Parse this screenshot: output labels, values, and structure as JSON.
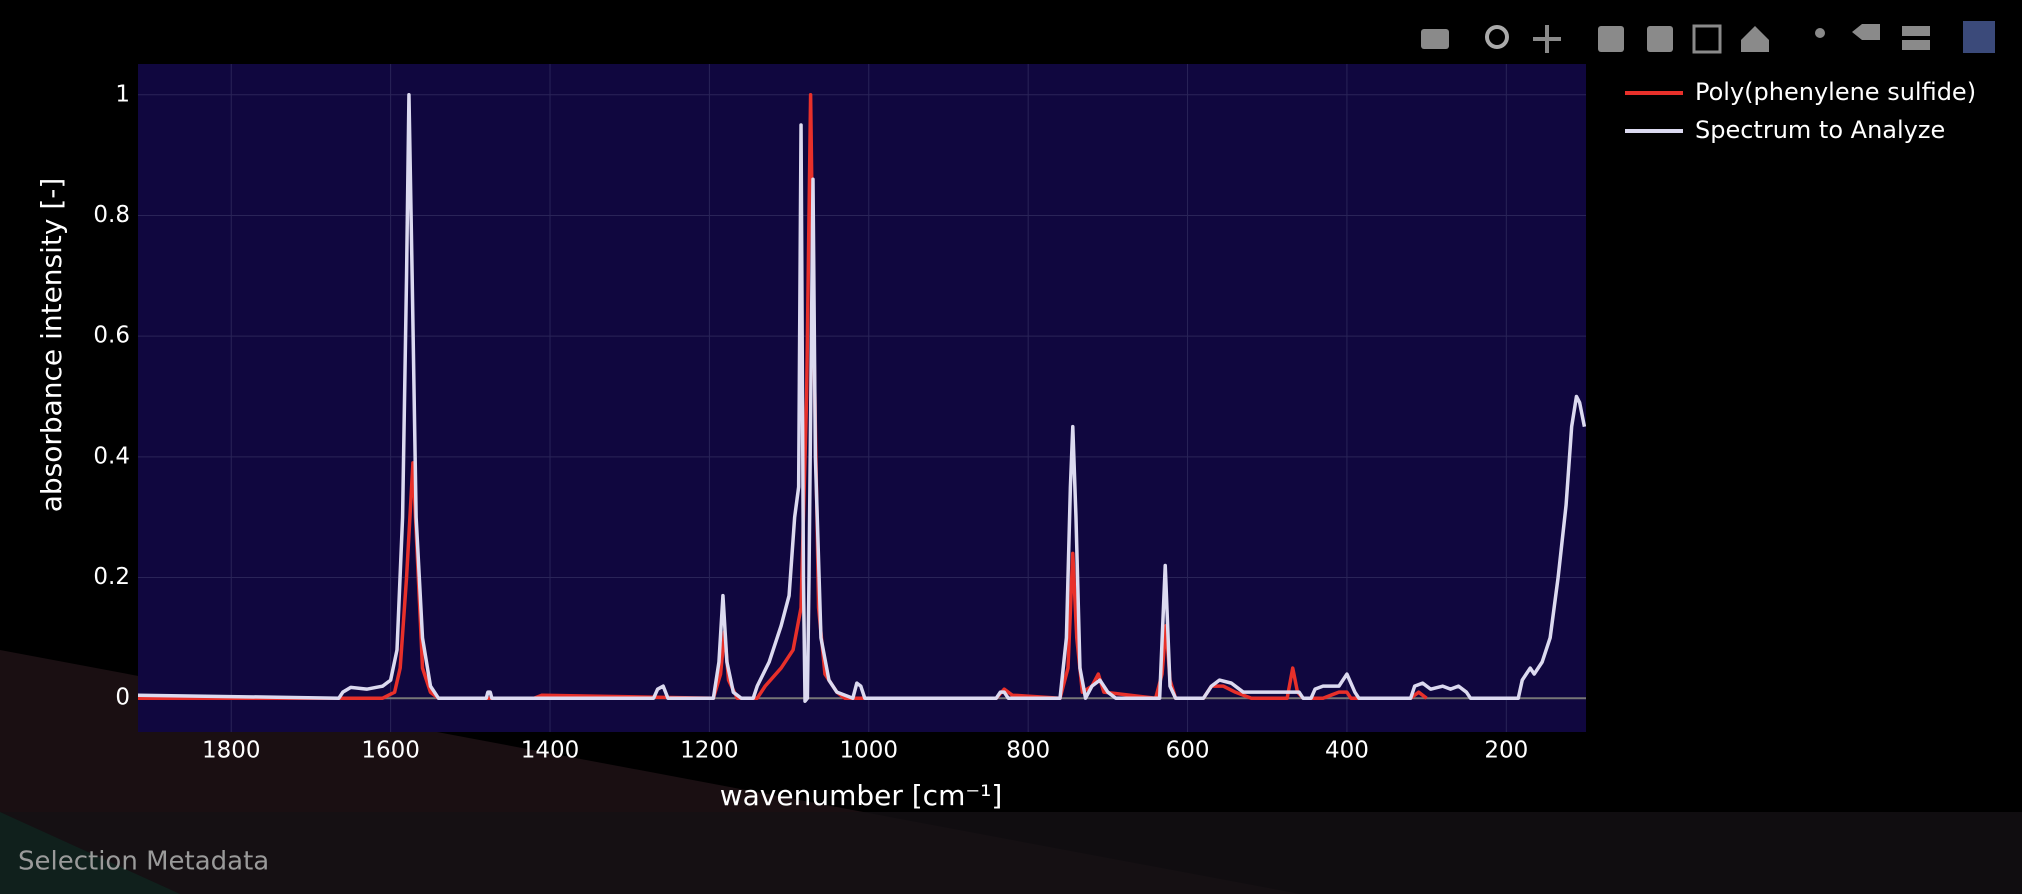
{
  "chart_data": {
    "type": "line",
    "x_label": "wavenumber [cm⁻¹]",
    "y_label": "absorbance intensity [-]",
    "xlim": [
      1917,
      100
    ],
    "ylim": [
      -0.056,
      1.051
    ],
    "xticks": [
      1800,
      1600,
      1400,
      1200,
      1000,
      800,
      600,
      400,
      200
    ],
    "yticks": [
      0,
      0.2,
      0.4,
      0.6,
      0.8,
      1
    ],
    "grid": true,
    "legend": "right",
    "series": [
      {
        "name": "Poly(phenylene sulfide)",
        "color": "#e8302a",
        "x": [
          1917,
          1610,
          1595,
          1588,
          1580,
          1572,
          1567,
          1560,
          1550,
          1540,
          1420,
          1410,
          1195,
          1186,
          1181,
          1176,
          1165,
          1140,
          1130,
          1110,
          1095,
          1085,
          1078,
          1073,
          1069,
          1063,
          1055,
          1040,
          1030,
          840,
          830,
          820,
          760,
          750,
          744,
          739,
          732,
          720,
          712,
          705,
          640,
          632,
          627,
          622,
          615,
          580,
          570,
          555,
          540,
          520,
          475,
          468,
          462,
          455,
          430,
          420,
          410,
          400,
          395,
          320,
          310,
          300
        ],
        "values": [
          0,
          0,
          0.01,
          0.05,
          0.2,
          0.39,
          0.25,
          0.05,
          0.01,
          0,
          0,
          0.005,
          0,
          0.04,
          0.11,
          0.03,
          0,
          0,
          0.02,
          0.05,
          0.08,
          0.15,
          0.5,
          1.0,
          0.6,
          0.15,
          0.04,
          0.01,
          0,
          0,
          0.015,
          0.005,
          0,
          0.05,
          0.24,
          0.1,
          0.01,
          0.02,
          0.04,
          0.01,
          0,
          0.04,
          0.12,
          0.03,
          0,
          0,
          0.02,
          0.02,
          0.01,
          0,
          0,
          0.05,
          0.01,
          0,
          0,
          0.005,
          0.01,
          0.01,
          0,
          0,
          0.01,
          0
        ]
      },
      {
        "name": "Spectrum to Analyze",
        "color": "#dcdaf0",
        "x": [
          1917,
          1665,
          1660,
          1650,
          1630,
          1610,
          1600,
          1592,
          1585,
          1580,
          1577,
          1573,
          1568,
          1560,
          1550,
          1540,
          1480,
          1478,
          1475,
          1473,
          1270,
          1265,
          1258,
          1252,
          1195,
          1188,
          1183,
          1178,
          1170,
          1160,
          1145,
          1140,
          1125,
          1110,
          1100,
          1093,
          1088,
          1085,
          1082,
          1080,
          1077,
          1075,
          1070,
          1067,
          1060,
          1050,
          1040,
          1020,
          1015,
          1010,
          1005,
          840,
          835,
          830,
          825,
          760,
          752,
          747,
          744,
          740,
          735,
          728,
          720,
          710,
          700,
          690,
          635,
          628,
          622,
          615,
          580,
          570,
          560,
          545,
          530,
          510,
          490,
          460,
          455,
          445,
          440,
          430,
          410,
          400,
          390,
          385,
          320,
          315,
          305,
          295,
          280,
          270,
          260,
          250,
          245,
          185,
          180,
          170,
          165,
          155,
          145,
          135,
          125,
          118,
          112,
          108,
          102
        ],
        "values": [
          0.005,
          0,
          0.01,
          0.018,
          0.015,
          0.02,
          0.03,
          0.08,
          0.3,
          0.7,
          1.0,
          0.7,
          0.3,
          0.1,
          0.02,
          0,
          0,
          0.01,
          0.01,
          0,
          0,
          0.015,
          0.02,
          0,
          0,
          0.06,
          0.17,
          0.06,
          0.01,
          0,
          0,
          0.02,
          0.06,
          0.12,
          0.17,
          0.3,
          0.35,
          0.95,
          0.2,
          -0.005,
          0,
          0.2,
          0.86,
          0.4,
          0.1,
          0.03,
          0.01,
          0,
          0.025,
          0.02,
          0,
          0,
          0.01,
          0.01,
          0,
          0,
          0.1,
          0.35,
          0.45,
          0.3,
          0.05,
          0,
          0.02,
          0.03,
          0.01,
          0,
          0,
          0.22,
          0.02,
          0,
          0,
          0.02,
          0.03,
          0.025,
          0.01,
          0.01,
          0.01,
          0.01,
          0,
          0,
          0.015,
          0.02,
          0.02,
          0.04,
          0.01,
          0,
          0,
          0.02,
          0.025,
          0.015,
          0.02,
          0.015,
          0.02,
          0.01,
          0,
          0,
          0.03,
          0.05,
          0.04,
          0.06,
          0.1,
          0.2,
          0.32,
          0.45,
          0.5,
          0.49,
          0.45
        ]
      }
    ]
  },
  "footer": {
    "label": "Selection Metadata"
  }
}
